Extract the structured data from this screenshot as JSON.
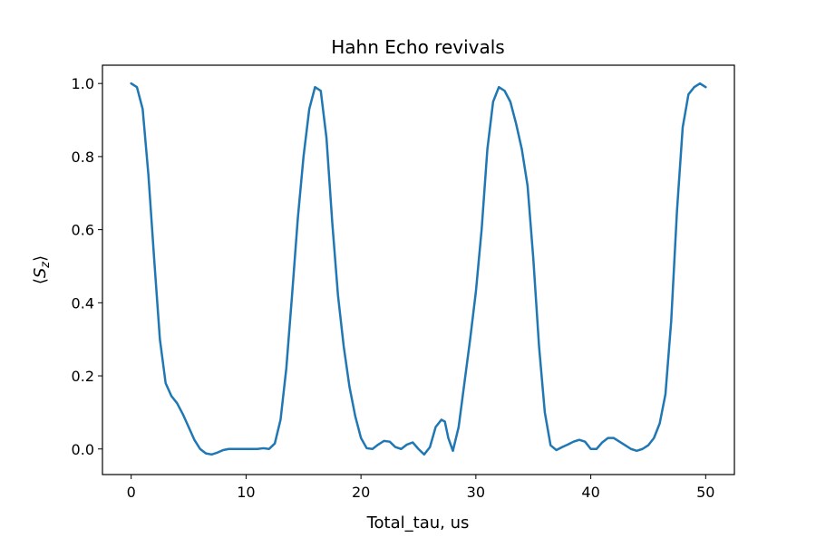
{
  "chart_data": {
    "type": "line",
    "title": "Hahn Echo revivals",
    "xlabel": "Total_tau, us",
    "ylabel": "⟨S_z⟩",
    "xlim": [
      -2.5,
      52.5
    ],
    "ylim": [
      -0.07,
      1.05
    ],
    "xticks": [
      0,
      10,
      20,
      30,
      40,
      50
    ],
    "xtick_labels": [
      "0",
      "10",
      "20",
      "30",
      "40",
      "50"
    ],
    "yticks": [
      0.0,
      0.2,
      0.4,
      0.6,
      0.8,
      1.0
    ],
    "ytick_labels": [
      "0.0",
      "0.2",
      "0.4",
      "0.6",
      "0.8",
      "1.0"
    ],
    "grid": false,
    "series": [
      {
        "color": "#1f77b4",
        "x": [
          0,
          0.5,
          1.0,
          1.5,
          2.0,
          2.5,
          3.0,
          3.5,
          4.0,
          4.5,
          5.0,
          5.5,
          6.0,
          6.5,
          7.0,
          7.5,
          8.0,
          8.5,
          9.0,
          10.0,
          11.0,
          11.5,
          12.0,
          12.5,
          13.0,
          13.5,
          14.0,
          14.5,
          15.0,
          15.5,
          16.0,
          16.5,
          17.0,
          17.5,
          18.0,
          18.5,
          19.0,
          19.5,
          20.0,
          20.5,
          21.0,
          21.5,
          22.0,
          22.5,
          23.0,
          23.5,
          24.0,
          24.5,
          25.0,
          25.5,
          26.0,
          26.5,
          27.0,
          27.3,
          27.6,
          28.0,
          28.5,
          29.0,
          29.5,
          30.0,
          30.5,
          31.0,
          31.5,
          32.0,
          32.5,
          33.0,
          33.5,
          34.0,
          34.5,
          35.0,
          35.5,
          36.0,
          36.5,
          37.0,
          37.5,
          38.0,
          38.5,
          39.0,
          39.5,
          40.0,
          40.5,
          41.0,
          41.5,
          42.0,
          42.5,
          43.0,
          43.5,
          44.0,
          44.5,
          45.0,
          45.5,
          46.0,
          46.5,
          47.0,
          47.5,
          48.0,
          48.5,
          49.0,
          49.5,
          50.0
        ],
        "y": [
          1.0,
          0.99,
          0.93,
          0.75,
          0.52,
          0.3,
          0.18,
          0.145,
          0.125,
          0.095,
          0.06,
          0.025,
          0.0,
          -0.012,
          -0.015,
          -0.01,
          -0.003,
          0.0,
          0.0,
          0.0,
          0.0,
          0.002,
          0.0,
          0.015,
          0.08,
          0.22,
          0.42,
          0.63,
          0.8,
          0.93,
          0.99,
          0.98,
          0.85,
          0.62,
          0.42,
          0.28,
          0.17,
          0.09,
          0.03,
          0.002,
          0.0,
          0.012,
          0.022,
          0.02,
          0.005,
          0.0,
          0.012,
          0.018,
          0.0,
          -0.015,
          0.005,
          0.06,
          0.08,
          0.075,
          0.03,
          -0.005,
          0.06,
          0.18,
          0.3,
          0.43,
          0.6,
          0.82,
          0.95,
          0.99,
          0.98,
          0.95,
          0.89,
          0.82,
          0.72,
          0.52,
          0.28,
          0.1,
          0.01,
          -0.003,
          0.005,
          0.012,
          0.02,
          0.025,
          0.02,
          0.0,
          0.0,
          0.018,
          0.03,
          0.03,
          0.02,
          0.01,
          0.0,
          -0.005,
          0.0,
          0.01,
          0.03,
          0.07,
          0.15,
          0.35,
          0.65,
          0.88,
          0.97,
          0.99,
          1.0,
          0.99
        ]
      }
    ]
  }
}
